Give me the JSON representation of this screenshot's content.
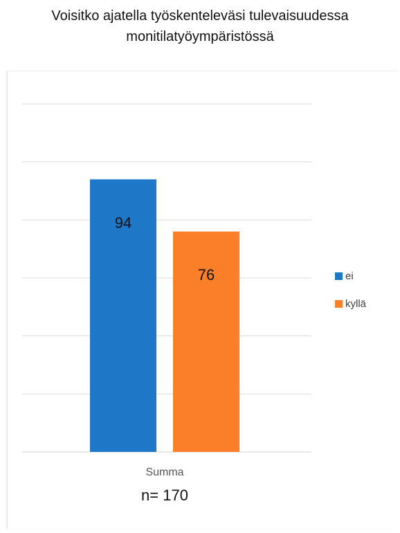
{
  "title_lines": [
    "Voisitko ajatella työskenteleväsi tulevaisuudessa",
    "monitilatyöympäristössä"
  ],
  "note": "n= 170",
  "colors": {
    "ei": "#1f77c8",
    "kylla": "#fb7f28",
    "grid": "#dcdcdc"
  },
  "chart_data": {
    "type": "bar",
    "title": "Voisitko ajatella työskenteleväsi tulevaisuudessa monitilatyöympäristössä",
    "categories": [
      "Summa"
    ],
    "series": [
      {
        "name": "ei",
        "values": [
          94
        ]
      },
      {
        "name": "kyllä",
        "values": [
          76
        ]
      }
    ],
    "ylim": [
      0,
      120
    ],
    "grid": true,
    "legend": "right",
    "data_labels": true
  }
}
